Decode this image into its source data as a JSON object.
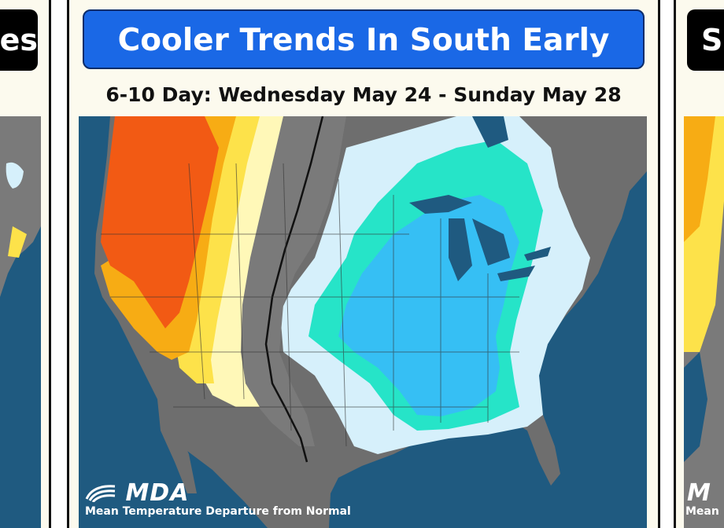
{
  "left_panel": {
    "title_fragment": "es"
  },
  "right_panel": {
    "title_fragment": "S",
    "logo_fragment": "M",
    "footer_fragment": "Mean"
  },
  "main": {
    "title": "Cooler Trends In South Early",
    "subtitle": "6-10 Day: Wednesday May 24 - Sunday May 28",
    "logo_text": "MDA",
    "footer": "Mean Temperature Departure from Normal"
  },
  "colors": {
    "ocean": "#1f5a80",
    "land_outside": "#6e6e6e",
    "normal": "#7a7a7a",
    "light_cool": "#d6f0fb",
    "cool": "#26e4c8",
    "cooler": "#36bff4",
    "light_warm": "#fff8b8",
    "warm": "#fde24a",
    "warmer": "#f7ac14",
    "hot": "#f25a14",
    "title_blue": "#1a68e6"
  }
}
